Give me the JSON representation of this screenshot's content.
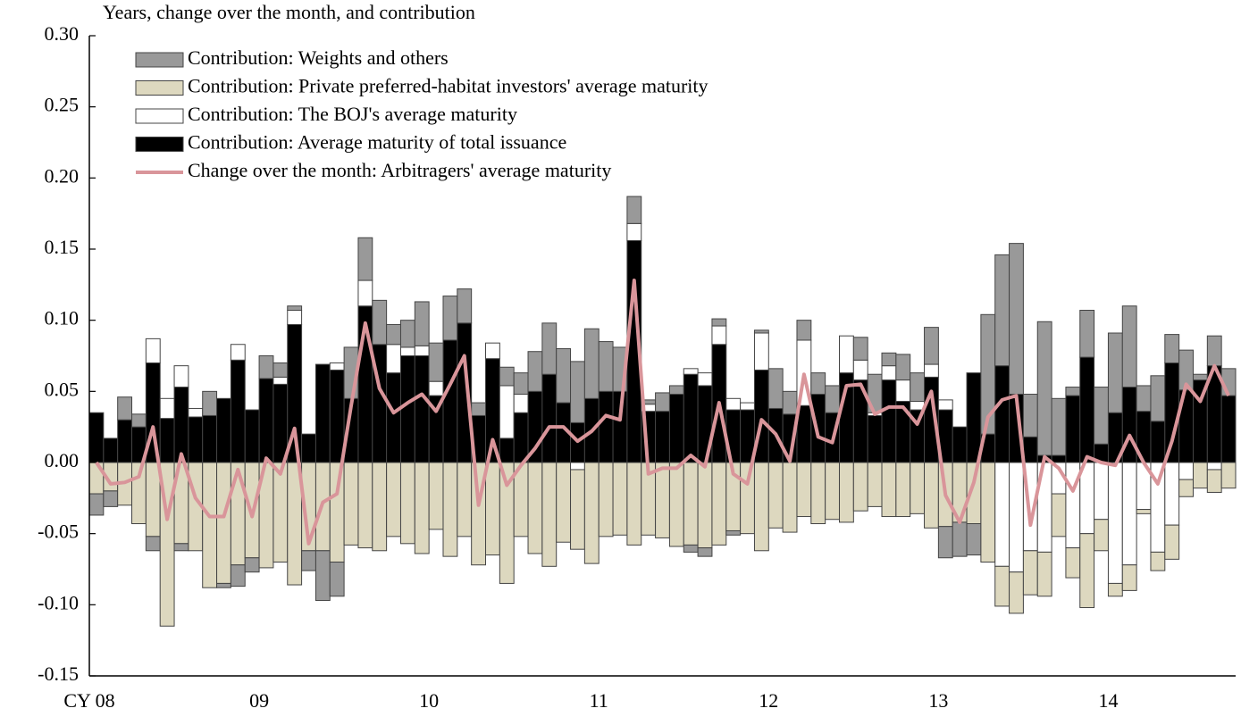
{
  "chart_data": {
    "type": "bar",
    "stacked": true,
    "y_axis_label": "Years, change over the month, and contribution",
    "categories": [
      "CY 08",
      null,
      null,
      null,
      null,
      null,
      null,
      null,
      null,
      null,
      null,
      null,
      "09",
      null,
      null,
      null,
      null,
      null,
      null,
      null,
      null,
      null,
      null,
      null,
      "10",
      null,
      null,
      null,
      null,
      null,
      null,
      null,
      null,
      null,
      null,
      null,
      "11",
      null,
      null,
      null,
      null,
      null,
      null,
      null,
      null,
      null,
      null,
      null,
      "12",
      null,
      null,
      null,
      null,
      null,
      null,
      null,
      null,
      null,
      null,
      null,
      "13",
      null,
      null,
      null,
      null,
      null,
      null,
      null,
      null,
      null,
      null,
      null,
      "14",
      null,
      null,
      null,
      null,
      null,
      null,
      null,
      null
    ],
    "ylim": [
      -0.15,
      0.3
    ],
    "yticks": [
      {
        "value": -0.15,
        "label": "-0.15"
      },
      {
        "value": -0.1,
        "label": "-0.10"
      },
      {
        "value": -0.05,
        "label": "-0.05"
      },
      {
        "value": 0,
        "label": "0.00"
      },
      {
        "value": 0.05,
        "label": "0.05"
      },
      {
        "value": 0.1,
        "label": "0.10"
      },
      {
        "value": 0.15,
        "label": "0.15"
      },
      {
        "value": 0.2,
        "label": "0.20"
      },
      {
        "value": 0.25,
        "label": "0.25"
      },
      {
        "value": 0.3,
        "label": "0.30"
      }
    ],
    "series": [
      {
        "name": "Contribution: Average maturity of total issuance",
        "color": "#000000",
        "values": [
          0.035,
          0.017,
          0.03,
          0.025,
          0.07,
          0.031,
          0.053,
          0.032,
          0.033,
          0.045,
          0.072,
          0.037,
          0.059,
          0.055,
          0.097,
          0.02,
          0.069,
          0.065,
          0.045,
          0.11,
          0.083,
          0.063,
          0.075,
          0.075,
          0.047,
          0.086,
          0.098,
          0.033,
          0.073,
          0.017,
          0.035,
          0.05,
          0.062,
          0.042,
          0.028,
          0.045,
          0.05,
          0.05,
          0.156,
          0.036,
          0.036,
          0.048,
          0.062,
          0.054,
          0.083,
          0.037,
          0.037,
          0.065,
          0.038,
          0.034,
          0.04,
          0.048,
          0.035,
          0.063,
          0.058,
          0.033,
          0.058,
          0.043,
          0.037,
          0.06,
          0.037,
          0.025,
          0.063,
          0.02,
          0.068,
          0.048,
          0.018,
          0.005,
          0.005,
          0.047,
          0.074,
          0.013,
          0.035,
          0.053,
          0.036,
          0.029,
          0.07,
          0.051,
          0.058,
          0.068,
          0.047
        ]
      },
      {
        "name": "Contribution: The BOJ's average maturity",
        "color": "#ffffff",
        "values": [
          0,
          0,
          0,
          0,
          0.017,
          0.014,
          0.015,
          0.006,
          0,
          0,
          0.011,
          0,
          0,
          0.005,
          0.01,
          0,
          0,
          0.005,
          0,
          0.018,
          0,
          0.02,
          0.006,
          0.007,
          0.01,
          0,
          0,
          0,
          0.011,
          0.037,
          0.013,
          0,
          0,
          0,
          -0.005,
          0,
          0,
          0,
          0.012,
          0.005,
          0,
          0,
          0.004,
          0.009,
          0.013,
          0.008,
          0.005,
          0.026,
          0,
          0,
          0.046,
          0,
          0,
          0.026,
          0.014,
          0.002,
          0.01,
          0.015,
          0.006,
          0.009,
          0.007,
          0,
          0,
          0,
          -0.073,
          -0.077,
          -0.062,
          -0.063,
          -0.022,
          -0.06,
          -0.05,
          -0.04,
          -0.085,
          -0.072,
          -0.033,
          -0.063,
          -0.044,
          -0.012,
          0,
          -0.005,
          0
        ]
      },
      {
        "name": "Contribution: Private preferred-habitat investors' average maturity",
        "color": "#ddd8bf",
        "values": [
          -0.022,
          -0.02,
          -0.03,
          -0.043,
          -0.052,
          -0.115,
          -0.057,
          -0.062,
          -0.088,
          -0.085,
          -0.072,
          -0.067,
          -0.074,
          -0.07,
          -0.086,
          -0.062,
          -0.062,
          -0.07,
          -0.058,
          -0.06,
          -0.062,
          -0.052,
          -0.057,
          -0.064,
          -0.047,
          -0.066,
          -0.052,
          -0.072,
          -0.065,
          -0.085,
          -0.052,
          -0.064,
          -0.073,
          -0.056,
          -0.056,
          -0.071,
          -0.052,
          -0.051,
          -0.058,
          -0.051,
          -0.053,
          -0.059,
          -0.058,
          -0.06,
          -0.058,
          -0.048,
          -0.05,
          -0.062,
          -0.046,
          -0.049,
          -0.038,
          -0.043,
          -0.04,
          -0.042,
          -0.034,
          -0.031,
          -0.038,
          -0.038,
          -0.036,
          -0.046,
          -0.045,
          -0.042,
          -0.043,
          -0.07,
          -0.028,
          -0.029,
          -0.031,
          -0.031,
          -0.03,
          -0.021,
          -0.052,
          -0.022,
          -0.009,
          -0.018,
          -0.003,
          -0.013,
          -0.024,
          -0.012,
          -0.018,
          -0.016,
          -0.018
        ]
      },
      {
        "name": "Contribution: Weights and others",
        "color": "#999999",
        "values": [
          -0.015,
          -0.011,
          0.016,
          0.009,
          -0.01,
          0,
          -0.005,
          0,
          0.017,
          -0.003,
          -0.015,
          -0.01,
          0.016,
          0.01,
          0.003,
          -0.014,
          -0.035,
          -0.024,
          0.036,
          0.03,
          0.031,
          0.014,
          0.019,
          0.031,
          0.027,
          0.031,
          0.024,
          0.009,
          0,
          0.013,
          0.015,
          0.028,
          0.036,
          0.038,
          0.043,
          0.049,
          0.035,
          0.031,
          0.019,
          0.003,
          0.013,
          0.006,
          -0.005,
          -0.006,
          0.005,
          -0.003,
          0,
          0.002,
          0.028,
          0.016,
          0.014,
          0.015,
          0.019,
          0,
          0.016,
          0.027,
          0.009,
          0.018,
          0.02,
          0.026,
          -0.022,
          -0.024,
          -0.022,
          0.084,
          0.078,
          0.106,
          0.03,
          0.094,
          0.04,
          0.006,
          0.033,
          0.04,
          0.056,
          0.057,
          0.018,
          0.032,
          0.02,
          0.028,
          0.004,
          0.021,
          0.019
        ]
      },
      {
        "name": "Change over the month: Arbitragers' average maturity",
        "color": "#d9959a",
        "type": "line",
        "values": [
          0.0,
          -0.015,
          -0.014,
          -0.01,
          0.025,
          -0.04,
          0.006,
          -0.025,
          -0.038,
          -0.038,
          -0.005,
          -0.038,
          0.003,
          -0.008,
          0.024,
          -0.057,
          -0.028,
          -0.022,
          0.04,
          0.098,
          0.052,
          0.035,
          0.042,
          0.048,
          0.036,
          0.055,
          0.075,
          -0.03,
          0.016,
          -0.016,
          -0.002,
          0.01,
          0.025,
          0.025,
          0.015,
          0.022,
          0.033,
          0.03,
          0.128,
          -0.008,
          -0.004,
          -0.004,
          0.005,
          -0.003,
          0.042,
          -0.008,
          -0.015,
          0.03,
          0.02,
          0.001,
          0.062,
          0.018,
          0.014,
          0.054,
          0.055,
          0.034,
          0.039,
          0.039,
          0.027,
          0.05,
          -0.023,
          -0.042,
          -0.014,
          0.032,
          0.044,
          0.047,
          -0.044,
          0.004,
          -0.004,
          -0.02,
          0.004,
          0.0,
          -0.002,
          0.019,
          0.0,
          -0.015,
          0.015,
          0.055,
          0.043,
          0.068,
          0.047
        ]
      }
    ]
  }
}
